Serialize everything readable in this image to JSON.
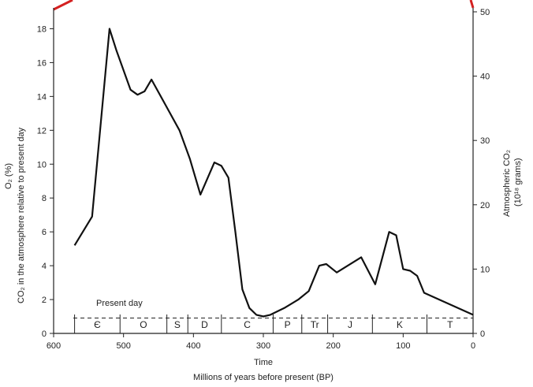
{
  "chart_data": {
    "type": "line",
    "xlabel_top": "Time",
    "xlabel": "Millions of years before present (BP)",
    "ylabel_left": "CO₂ in the atmosphere relative to present day",
    "ylabel_left_prefix": "O₂ (%)",
    "ylabel_right": "Atmospheric CO₂",
    "ylabel_right_units": "(10¹⁸ grams)",
    "xlim": [
      600,
      0
    ],
    "ylim_left": [
      0,
      19
    ],
    "ylim_right": [
      0,
      50
    ],
    "x_ticks": [
      600,
      500,
      400,
      300,
      200,
      100,
      0
    ],
    "y_left_ticks": [
      0,
      2,
      4,
      6,
      8,
      10,
      12,
      14,
      16,
      18
    ],
    "y_right_ticks": [
      0,
      10,
      20,
      30,
      40,
      50
    ],
    "grid": false,
    "series": [
      {
        "color": "#111111",
        "x": [
          570,
          545,
          520,
          510,
          490,
          480,
          470,
          460,
          440,
          420,
          405,
          390,
          370,
          360,
          350,
          340,
          330,
          320,
          310,
          300,
          290,
          270,
          250,
          235,
          220,
          210,
          195,
          160,
          140,
          120,
          110,
          100,
          90,
          80,
          70,
          0
        ],
        "y": [
          5.2,
          6.9,
          18.0,
          16.7,
          14.4,
          14.1,
          14.3,
          15.0,
          13.5,
          12.0,
          10.3,
          8.2,
          10.1,
          9.9,
          9.2,
          6.0,
          2.6,
          1.5,
          1.1,
          1.0,
          1.1,
          1.5,
          2.0,
          2.5,
          4.0,
          4.1,
          3.6,
          4.5,
          2.9,
          6.0,
          5.8,
          3.8,
          3.7,
          3.4,
          2.4,
          1.1
        ]
      }
    ],
    "baseline": {
      "label": "Present day",
      "y": 1.0
    },
    "periods": [
      {
        "label": "Є",
        "start": 570,
        "end": 505
      },
      {
        "label": "O",
        "start": 505,
        "end": 438
      },
      {
        "label": "S",
        "start": 438,
        "end": 408
      },
      {
        "label": "D",
        "start": 408,
        "end": 360
      },
      {
        "label": "C",
        "start": 360,
        "end": 286
      },
      {
        "label": "P",
        "start": 286,
        "end": 245
      },
      {
        "label": "Tr",
        "start": 245,
        "end": 208
      },
      {
        "label": "J",
        "start": 208,
        "end": 144
      },
      {
        "label": "K",
        "start": 144,
        "end": 66
      },
      {
        "label": "T",
        "start": 66,
        "end": 0
      }
    ]
  }
}
